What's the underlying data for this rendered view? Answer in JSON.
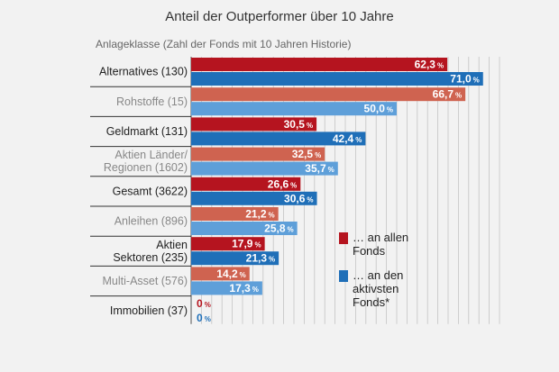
{
  "chart_data": {
    "type": "bar",
    "title": "Anteil der Outperformer über 10 Jahre",
    "subtitle": "Anlageklasse (Zahl der Fonds mit 10 Jahren Historie)",
    "categories": [
      "Alternatives (130)",
      "Rohstoffe (15)",
      "Geldmarkt (131)",
      "Aktien Länder/ Regionen (1602)",
      "Gesamt (3622)",
      "Anleihen (896)",
      "Aktien Sektoren (235)",
      "Multi-Asset (576)",
      "Immobilien (37)"
    ],
    "category_emphasis": [
      true,
      false,
      true,
      false,
      true,
      false,
      true,
      false,
      true
    ],
    "series": [
      {
        "name": "… an allen Fonds",
        "values": [
          62.3,
          66.7,
          30.5,
          32.5,
          26.6,
          21.2,
          17.9,
          14.2,
          0
        ],
        "labels": [
          "62,3",
          "66,7",
          "30,5",
          "32,5",
          "26,6",
          "21,2",
          "17,9",
          "14,2",
          "0"
        ]
      },
      {
        "name": "… an den aktivsten Fonds*",
        "values": [
          71.0,
          50.0,
          42.4,
          35.7,
          30.6,
          25.8,
          21.3,
          17.3,
          0
        ],
        "labels": [
          "71,0",
          "50,0",
          "42,4",
          "35,7",
          "30,6",
          "25,8",
          "21,3",
          "17,3",
          "0"
        ]
      }
    ],
    "unit": "%",
    "xlim": [
      0,
      75
    ],
    "grid": true,
    "legend_position": "right",
    "colors": {
      "series1_strong": "#b5141f",
      "series1_light": "#cf6350",
      "series2_strong": "#1f6fb8",
      "series2_light": "#5e9fd9",
      "label_strong": "#222222",
      "label_light": "#888888"
    }
  }
}
